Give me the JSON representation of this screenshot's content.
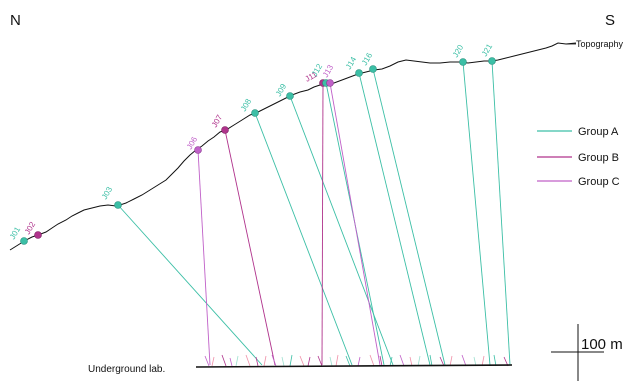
{
  "compass": {
    "left": "N",
    "right": "S"
  },
  "topography_label": "Topography",
  "underground_label": "Underground lab.",
  "scale_label": "100 m",
  "legend": [
    {
      "label": "Group A",
      "color": "#3cbfa6"
    },
    {
      "label": "Group B",
      "color": "#b0338c"
    },
    {
      "label": "Group C",
      "color": "#c060c8"
    }
  ],
  "stations": [
    {
      "id": "J01",
      "group": "Group A"
    },
    {
      "id": "J02",
      "group": "Group B"
    },
    {
      "id": "J03",
      "group": "Group A"
    },
    {
      "id": "J06",
      "group": "Group C"
    },
    {
      "id": "J07",
      "group": "Group B"
    },
    {
      "id": "J08",
      "group": "Group A"
    },
    {
      "id": "J09",
      "group": "Group A"
    },
    {
      "id": "J11",
      "group": "Group B"
    },
    {
      "id": "J12",
      "group": "Group A"
    },
    {
      "id": "J13",
      "group": "Group C"
    },
    {
      "id": "J14",
      "group": "Group A"
    },
    {
      "id": "J16",
      "group": "Group A"
    },
    {
      "id": "J20",
      "group": "Group A"
    },
    {
      "id": "J21",
      "group": "Group A"
    }
  ]
}
